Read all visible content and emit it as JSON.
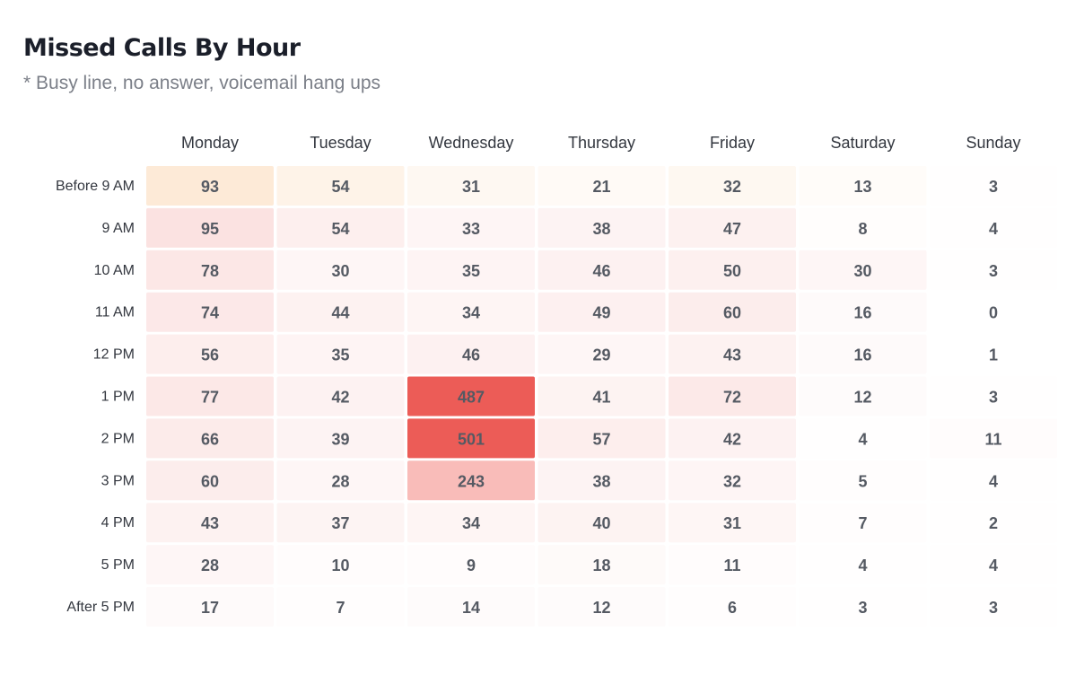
{
  "header": {
    "title": "Missed Calls By Hour",
    "subtitle": "* Busy line, no answer, voicemail hang ups"
  },
  "colors": {
    "high": "#ec5c57",
    "mid": "#f8b2ae",
    "low": "#fbe2e1",
    "warm_low": "#fde9d6",
    "text": "#555a63",
    "label": "#33373f"
  },
  "chart_data": {
    "type": "heatmap",
    "title": "Missed Calls By Hour",
    "subtitle": "* Busy line, no answer, voicemail hang ups",
    "columns": [
      "Monday",
      "Tuesday",
      "Wednesday",
      "Thursday",
      "Friday",
      "Saturday",
      "Sunday"
    ],
    "rows": [
      "Before 9 AM",
      "9 AM",
      "10 AM",
      "11 AM",
      "12 PM",
      "1 PM",
      "2 PM",
      "3 PM",
      "4 PM",
      "5 PM",
      "After 5 PM"
    ],
    "values": [
      [
        93,
        54,
        31,
        21,
        32,
        13,
        3
      ],
      [
        95,
        54,
        33,
        38,
        47,
        8,
        4
      ],
      [
        78,
        30,
        35,
        46,
        50,
        30,
        3
      ],
      [
        74,
        44,
        34,
        49,
        60,
        16,
        0
      ],
      [
        56,
        35,
        46,
        29,
        43,
        16,
        1
      ],
      [
        77,
        42,
        487,
        41,
        72,
        12,
        3
      ],
      [
        66,
        39,
        501,
        57,
        42,
        4,
        11
      ],
      [
        60,
        28,
        243,
        38,
        32,
        5,
        4
      ],
      [
        43,
        37,
        34,
        40,
        31,
        7,
        2
      ],
      [
        28,
        10,
        9,
        18,
        11,
        4,
        4
      ],
      [
        17,
        7,
        14,
        12,
        6,
        3,
        3
      ]
    ]
  }
}
